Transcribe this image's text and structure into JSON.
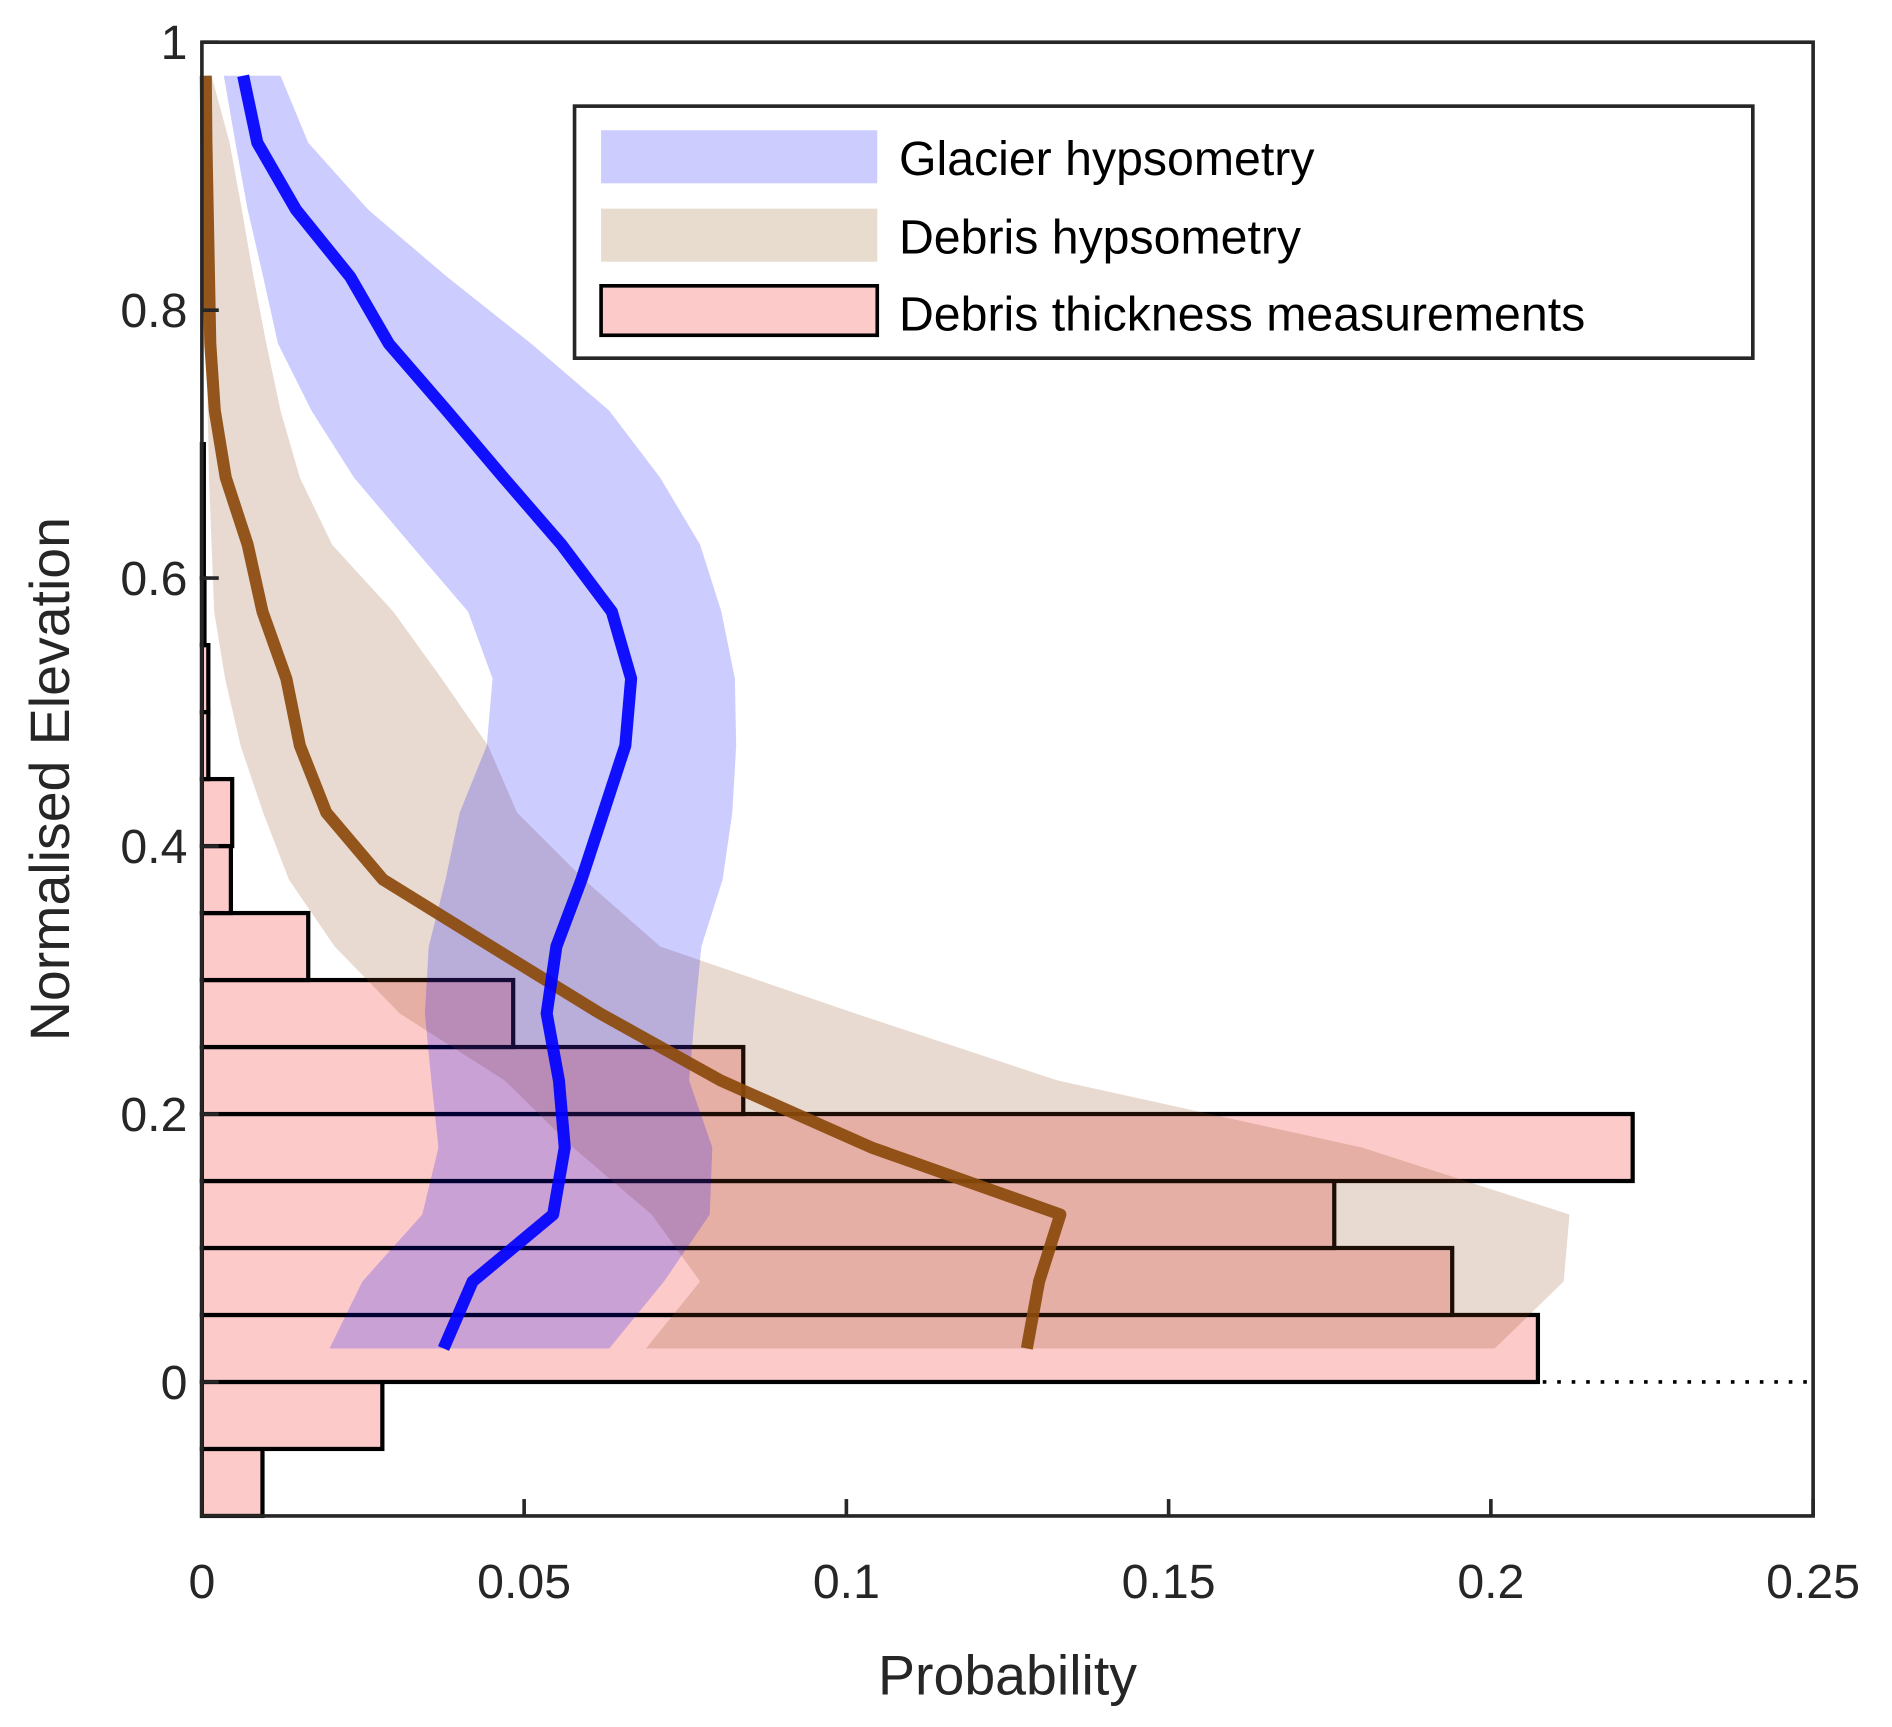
{
  "chart_data": {
    "type": "bar+line+area",
    "title": "",
    "xlabel": "Probability",
    "ylabel": "Normalised Elevation",
    "xlim": [
      0,
      0.25
    ],
    "ylim": [
      -0.1,
      1
    ],
    "xticks": [
      "0",
      "0.05",
      "0.1",
      "0.15",
      "0.2",
      "0.25"
    ],
    "yticks": [
      "0",
      "0.2",
      "0.4",
      "0.6",
      "0.8",
      "1"
    ],
    "grid": false,
    "legend_placement": "top-right",
    "legend": [
      {
        "label": "Glacier hypsometry",
        "color": "#ccccff"
      },
      {
        "label": "Debris hypsometry",
        "color": "#e8dccf"
      },
      {
        "label": "Debris thickness measurements",
        "color": "#fdcaca"
      }
    ],
    "elevation_bin_centers": [
      0.975,
      0.925,
      0.875,
      0.825,
      0.775,
      0.725,
      0.675,
      0.625,
      0.575,
      0.525,
      0.475,
      0.425,
      0.375,
      0.325,
      0.275,
      0.225,
      0.175,
      0.125,
      0.075,
      0.025
    ],
    "glacier_hypsometry": {
      "color": "#0000ff",
      "median": [
        0.0064,
        0.0086,
        0.0146,
        0.023,
        0.029,
        0.038,
        0.0468,
        0.0558,
        0.0636,
        0.0666,
        0.0657,
        0.0623,
        0.0589,
        0.055,
        0.0535,
        0.0554,
        0.0563,
        0.0545,
        0.042,
        0.0375
      ],
      "lower": [
        0.0034,
        0.0052,
        0.0071,
        0.0095,
        0.0118,
        0.017,
        0.0236,
        0.0324,
        0.0413,
        0.0451,
        0.0442,
        0.04,
        0.0378,
        0.0352,
        0.0346,
        0.0356,
        0.0367,
        0.0342,
        0.0249,
        0.0198
      ],
      "upper": [
        0.0122,
        0.0165,
        0.0258,
        0.038,
        0.0511,
        0.0632,
        0.0711,
        0.0773,
        0.0806,
        0.0827,
        0.0829,
        0.0823,
        0.0808,
        0.0775,
        0.0765,
        0.0756,
        0.0792,
        0.0788,
        0.0717,
        0.0632
      ]
    },
    "debris_hypsometry": {
      "color": "#8b4a0b",
      "median": [
        0.0006,
        0.0007,
        0.0009,
        0.0011,
        0.0013,
        0.002,
        0.0037,
        0.0071,
        0.0094,
        0.0131,
        0.0152,
        0.0193,
        0.0281,
        0.0449,
        0.0618,
        0.0805,
        0.1039,
        0.1332,
        0.1299,
        0.128
      ],
      "lower": [
        0.0,
        0.0004,
        0.0006,
        0.0006,
        0.0007,
        0.0009,
        0.0011,
        0.0015,
        0.0019,
        0.0036,
        0.006,
        0.0095,
        0.0135,
        0.0206,
        0.0307,
        0.047,
        0.0576,
        0.0698,
        0.0773,
        0.0689
      ],
      "upper": [
        0.0015,
        0.0043,
        0.0062,
        0.008,
        0.01,
        0.0122,
        0.0152,
        0.0202,
        0.0297,
        0.0372,
        0.0444,
        0.0489,
        0.0593,
        0.0711,
        0.1014,
        0.1328,
        0.18,
        0.2122,
        0.2113,
        0.2006
      ]
    },
    "debris_thickness_histogram": {
      "bin_edges": [
        -0.1,
        -0.05,
        0,
        0.05,
        0.1,
        0.15,
        0.2,
        0.25,
        0.3,
        0.35,
        0.4,
        0.45,
        0.5,
        0.55,
        0.6,
        0.7
      ],
      "values": [
        0.0094,
        0.028,
        0.2073,
        0.194,
        0.1757,
        0.222,
        0.084,
        0.0483,
        0.0165,
        0.0045,
        0.0047,
        0.001,
        0.001,
        0.0004,
        0.0003
      ]
    },
    "reference_line": {
      "y": 0,
      "style": "dotted"
    }
  }
}
